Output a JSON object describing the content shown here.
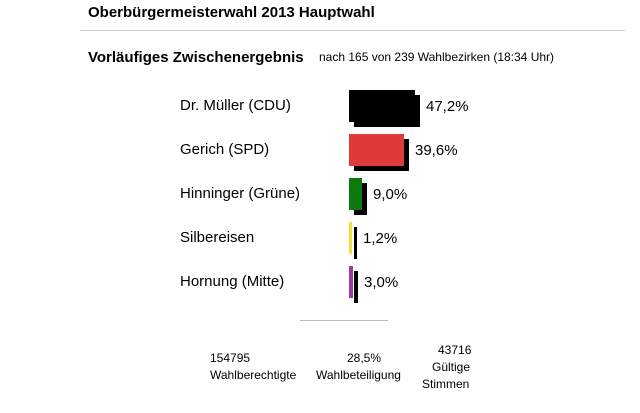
{
  "header": {
    "title": "Oberbürgermeisterwahl 2013 Hauptwahl",
    "subtitle": "Vorläufiges Zwischenergebnis",
    "status": "nach 165 von 239 Wahlbezirken (18:34 Uhr)"
  },
  "chart_data": {
    "type": "bar",
    "orientation": "horizontal",
    "categories": [
      "Dr. Müller (CDU)",
      "Gerich (SPD)",
      "Hinninger (Grüne)",
      "Silbereisen",
      "Hornung (Mitte)"
    ],
    "values": [
      47.2,
      39.6,
      9.0,
      1.2,
      3.0
    ],
    "value_labels": [
      "47,2%",
      "39,6%",
      "9,0%",
      "1,2%",
      "3,0%"
    ],
    "colors": [
      "#000000",
      "#e03a3a",
      "#0c7a0c",
      "#f0e040",
      "#9b3a9b"
    ],
    "unit": "%"
  },
  "stats": {
    "eligible_value": "154795",
    "eligible_label": "Wahlberechtigte",
    "turnout_value": "28,5%",
    "turnout_label": "Wahlbeteiligung",
    "valid_value": "43716",
    "valid_label_1": "Gültige",
    "valid_label_2": "Stimmen"
  }
}
